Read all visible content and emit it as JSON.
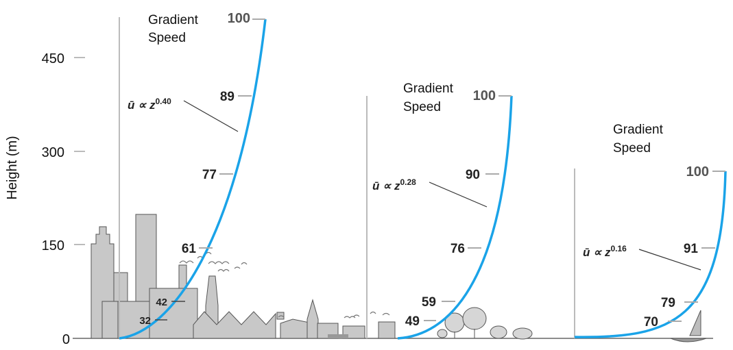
{
  "axis": {
    "ylabel": "Height (m)",
    "ticks": [
      "450",
      "300",
      "150",
      "0"
    ]
  },
  "profiles": [
    {
      "gradient_label_1": "Gradient",
      "gradient_label_2": "Speed",
      "law_base": "ū ∝ z",
      "law_exp": "0.40",
      "percent_labels": [
        "100",
        "89",
        "77",
        "61",
        "42",
        "32"
      ]
    },
    {
      "gradient_label_1": "Gradient",
      "gradient_label_2": "Speed",
      "law_base": "ū ∝ z",
      "law_exp": "0.28",
      "percent_labels": [
        "100",
        "90",
        "76",
        "59",
        "49"
      ]
    },
    {
      "gradient_label_1": "Gradient",
      "gradient_label_2": "Speed",
      "law_base": "ū ∝ z",
      "law_exp": "0.16",
      "percent_labels": [
        "100",
        "91",
        "79",
        "70"
      ]
    }
  ],
  "colors": {
    "profile_curve": "#1aa3e8",
    "buildings": "#c8c8c8",
    "outline": "#555555"
  }
}
